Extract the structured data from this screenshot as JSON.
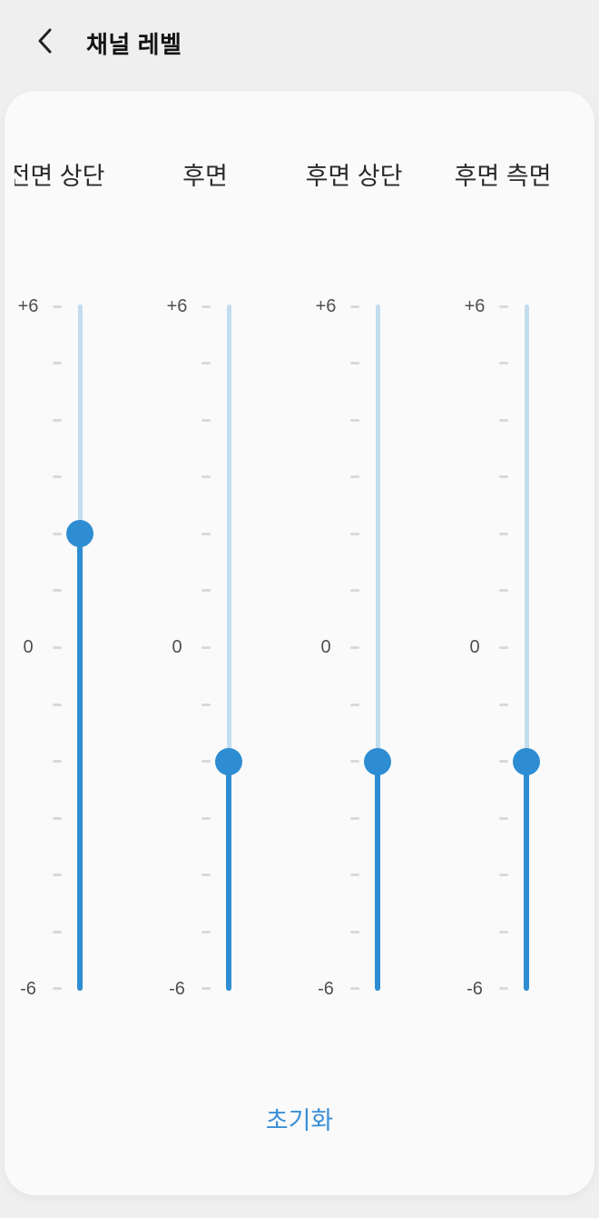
{
  "header": {
    "back_icon": "chevron-left",
    "title": "채널 레벨"
  },
  "panel": {
    "channels": [
      {
        "label": "전면 상단",
        "value": 2
      },
      {
        "label": "후면",
        "value": -2
      },
      {
        "label": "후면 상단",
        "value": -2
      },
      {
        "label": "후면 측면",
        "value": -2
      }
    ],
    "scale": {
      "max": 6,
      "min": -6,
      "step": 1,
      "labeled_ticks": [
        {
          "text": "+6",
          "tick_index": 0
        },
        {
          "text": "0",
          "tick_index": 6
        },
        {
          "text": "-6",
          "tick_index": 12
        }
      ]
    },
    "reset_label": "초기화"
  },
  "colors": {
    "accent_blue": "#2e8dd2",
    "track_inactive": "#c2dcf0",
    "tick_gray": "#d9d9d9",
    "reset_blue": "#3a8fd6",
    "card_bg": "#fafafa",
    "page_bg": "#efeff0",
    "text_dark": "#131313"
  }
}
